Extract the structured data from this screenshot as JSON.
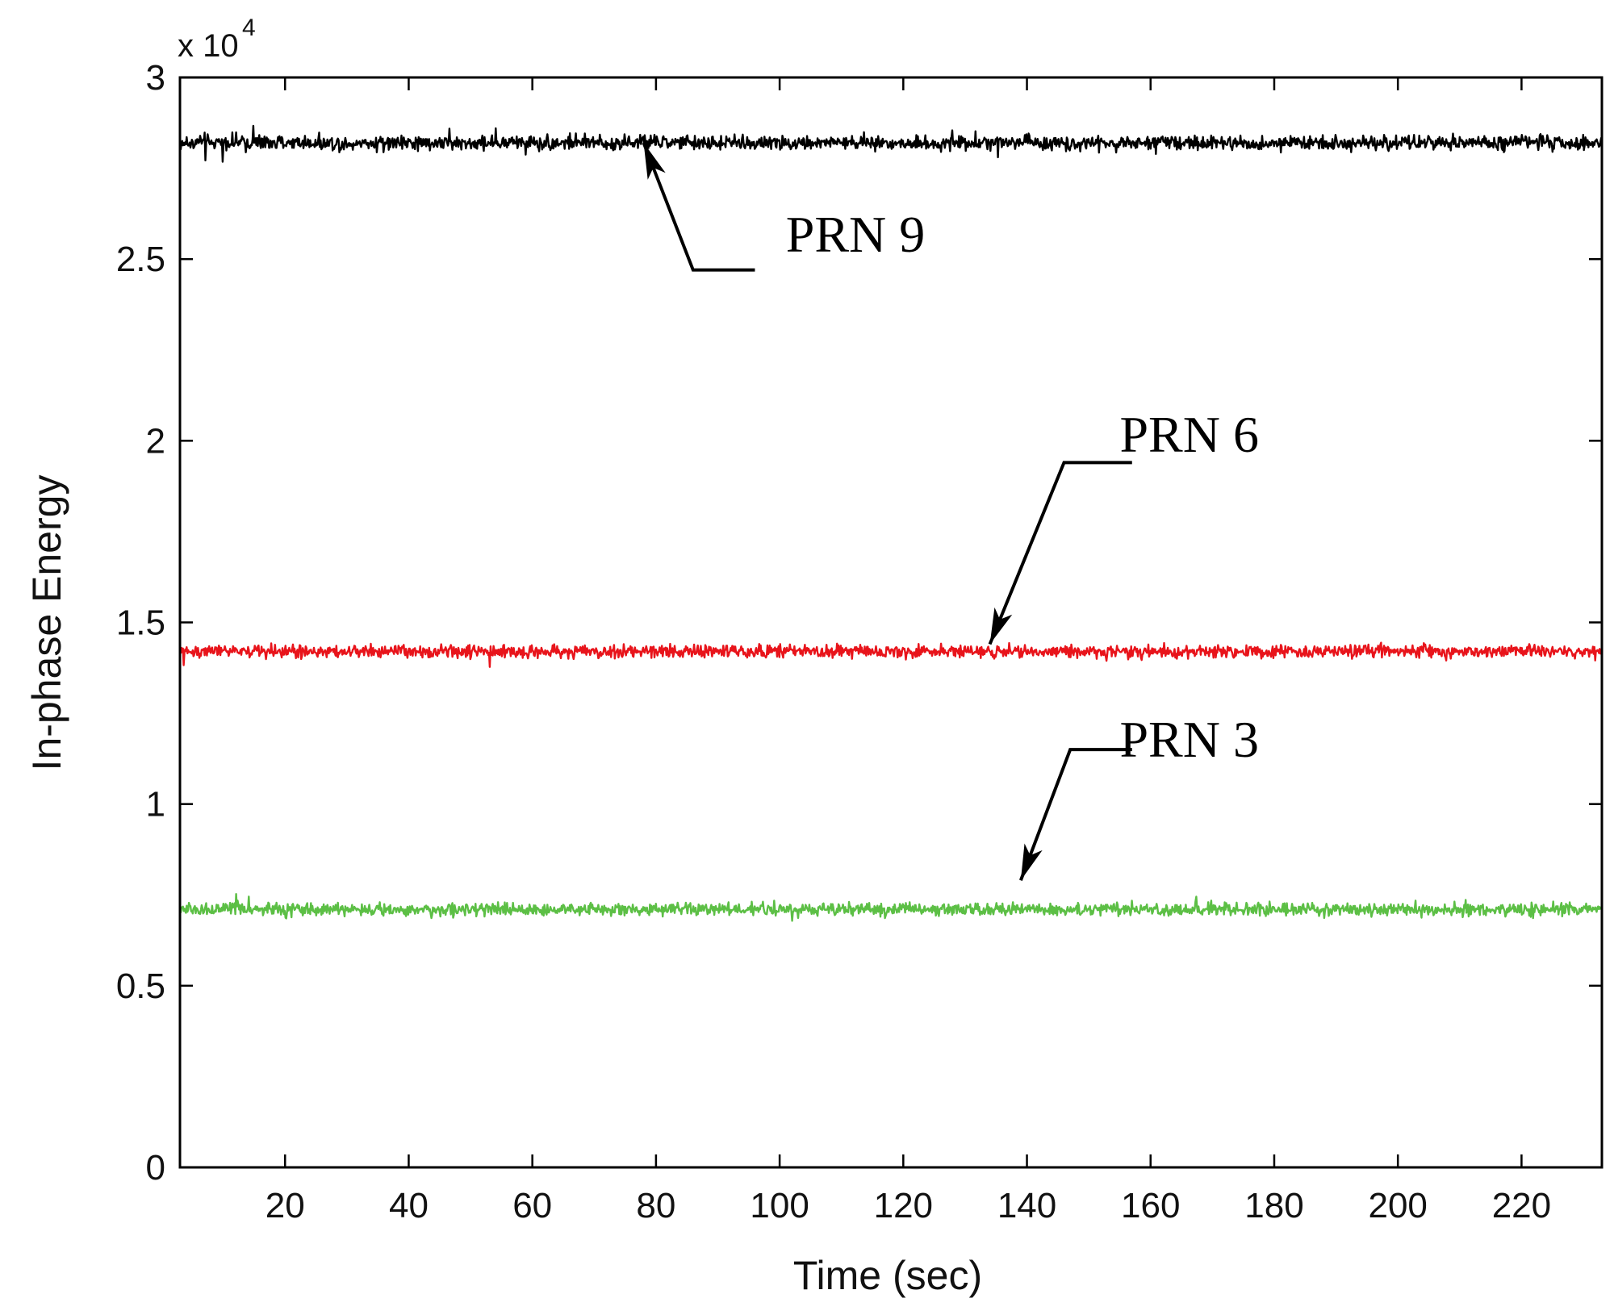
{
  "chart_data": {
    "type": "line",
    "xlabel": "Time (sec)",
    "ylabel": "In-phase Energy",
    "y_multiplier_label": "x 10",
    "y_multiplier_exponent": "4",
    "xlim": [
      3,
      233
    ],
    "ylim": [
      0,
      3
    ],
    "xticks": [
      20,
      40,
      60,
      80,
      100,
      120,
      140,
      160,
      180,
      200,
      220
    ],
    "xtick_labels": [
      "20",
      "40",
      "60",
      "80",
      "100",
      "120",
      "140",
      "160",
      "180",
      "200",
      "220"
    ],
    "yticks": [
      0,
      0.5,
      1,
      1.5,
      2,
      2.5,
      3
    ],
    "ytick_labels": [
      "0",
      "0.5",
      "1",
      "1.5",
      "2",
      "2.5",
      "3"
    ],
    "grid": false,
    "series": [
      {
        "name": "PRN 9",
        "color": "#000000",
        "mean": 2.82,
        "noise_amplitude": 0.035,
        "x_range": [
          3,
          233
        ]
      },
      {
        "name": "PRN 6",
        "color": "#e8141b",
        "mean": 1.42,
        "noise_amplitude": 0.03,
        "x_range": [
          3,
          233
        ]
      },
      {
        "name": "PRN 3",
        "color": "#5cbf45",
        "mean": 0.71,
        "noise_amplitude": 0.03,
        "x_range": [
          3,
          233
        ]
      }
    ],
    "annotations": [
      {
        "text": "PRN 9",
        "target": [
          78,
          2.82
        ],
        "elbow": [
          86,
          2.47
        ],
        "tail_end": [
          96,
          2.47
        ],
        "text_pos": [
          101,
          2.52
        ]
      },
      {
        "text": "PRN 6",
        "target": [
          134,
          1.44
        ],
        "elbow": [
          146,
          1.94
        ],
        "tail_end": [
          157,
          1.94
        ],
        "text_pos": [
          155,
          1.97
        ]
      },
      {
        "text": "PRN 3",
        "target": [
          139,
          0.79
        ],
        "elbow": [
          147,
          1.15
        ],
        "tail_end": [
          157,
          1.15
        ],
        "text_pos": [
          155,
          1.13
        ]
      }
    ]
  }
}
